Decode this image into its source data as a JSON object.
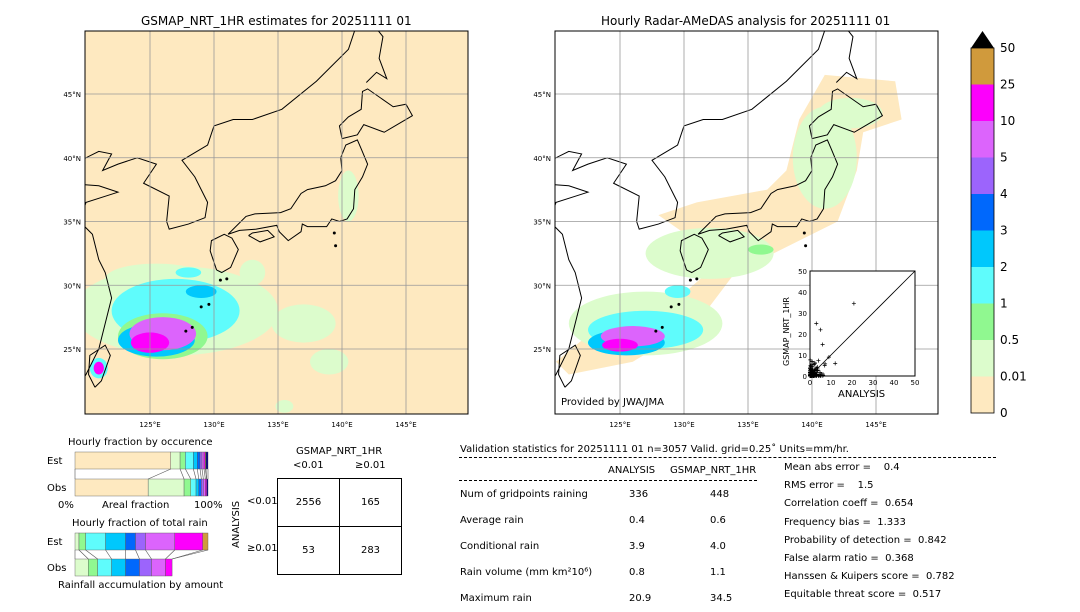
{
  "left_map": {
    "title": "GSMAP_NRT_1HR estimates for 20251111 01"
  },
  "right_map": {
    "title": "Hourly Radar-AMeDAS analysis for 20251111 01",
    "credit": "Provided by JWA/JMA"
  },
  "axes": {
    "lon_ticks": [
      "125°E",
      "130°E",
      "135°E",
      "140°E",
      "145°E"
    ],
    "lat_ticks": [
      "45°N",
      "40°N",
      "35°N",
      "30°N",
      "25°N"
    ]
  },
  "colorbar": {
    "labels": [
      "0",
      "0.01",
      "0.5",
      "1",
      "2",
      "3",
      "4",
      "5",
      "10",
      "25",
      "50"
    ],
    "colors": [
      "#fee9c0",
      "#dcfccc",
      "#90f890",
      "#5ffcfc",
      "#00c8fc",
      "#0068fc",
      "#9c64fc",
      "#dc64fc",
      "#fc00fc",
      "#d09a3c"
    ],
    "extend_color": "#000000"
  },
  "scatter": {
    "xlabel": "ANALYSIS",
    "ylabel": "GSMAP_NRT_1HR",
    "ticks": [
      "0",
      "10",
      "20",
      "30",
      "40",
      "50"
    ]
  },
  "occurrence": {
    "title": "Hourly fraction by occurence",
    "est_label": "Est",
    "obs_label": "Obs",
    "x0": "0%",
    "xlabel": "Areal fraction",
    "x1": "100%",
    "est": [
      72,
      7,
      4,
      6,
      3,
      2,
      1.5,
      1.5,
      1,
      0.5,
      1.5
    ],
    "obs": [
      55,
      27,
      5,
      4,
      2,
      2,
      1.5,
      1.5,
      1,
      0,
      1
    ]
  },
  "total_rain": {
    "title": "Hourly fraction of total rain",
    "est_label": "Est",
    "obs_label": "Obs",
    "xlabel": "Rainfall accumulation by amount",
    "est": [
      3,
      5,
      15,
      15,
      7.5,
      7.5,
      22,
      21,
      4
    ],
    "obs": [
      10,
      7,
      10.5,
      10.5,
      10.5,
      9,
      10.5,
      5,
      0
    ]
  },
  "contingency": {
    "col_title": "GSMAP_NRT_1HR",
    "col_labels": [
      "<0.01",
      "≥0.01"
    ],
    "row_title": "ANALYSIS",
    "row_labels": [
      "<0.01",
      "≥0.01"
    ],
    "values": [
      [
        "2556",
        "165"
      ],
      [
        "53",
        "283"
      ]
    ]
  },
  "stats": {
    "header": "Validation statistics for 20251111 01  n=3057 Valid. grid=0.25˚ Units=mm/hr.",
    "col_headers": [
      "ANALYSIS",
      "GSMAP_NRT_1HR"
    ],
    "rows": [
      {
        "label": "Num of gridpoints raining",
        "a": "336",
        "g": "448"
      },
      {
        "label": "Average rain",
        "a": "0.4",
        "g": "0.6"
      },
      {
        "label": "Conditional rain",
        "a": "3.9",
        "g": "4.0"
      },
      {
        "label": "Rain volume (mm km²10⁶)",
        "a": "0.8",
        "g": "1.1"
      },
      {
        "label": "Maximum rain",
        "a": "20.9",
        "g": "34.5"
      }
    ],
    "scores": [
      "Mean abs error =    0.4",
      "RMS error =    1.5",
      "Correlation coeff =  0.654",
      "Frequency bias =  1.333",
      "Probability of detection =  0.842",
      "False alarm ratio =  0.368",
      "Hanssen & Kuipers score =  0.782",
      "Equitable threat score =  0.517"
    ]
  }
}
